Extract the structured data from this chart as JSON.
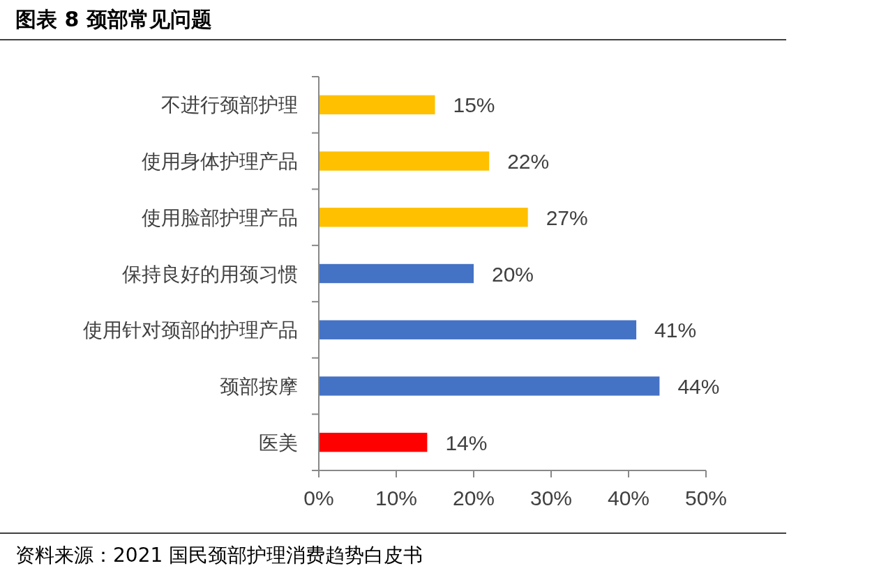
{
  "chart_data": {
    "type": "bar",
    "orientation": "horizontal",
    "title": "图表 8 颈部常见问题",
    "annotations": [
      "资料来源：2021 国民颈部护理消费趋势白皮书"
    ],
    "categories": [
      "不进行颈部护理",
      "使用身体护理产品",
      "使用脸部护理产品",
      "保持良好的用颈习惯",
      "使用针对颈部的护理产品",
      "颈部按摩",
      "医美"
    ],
    "values": [
      15,
      22,
      27,
      20,
      41,
      44,
      14
    ],
    "colors": [
      "#ffc000",
      "#ffc000",
      "#ffc000",
      "#4472c4",
      "#4472c4",
      "#4472c4",
      "#ff0000"
    ],
    "value_labels": [
      "15%",
      "22%",
      "27%",
      "20%",
      "41%",
      "44%",
      "14%"
    ],
    "xlim": [
      0,
      50
    ],
    "xticks": [
      {
        "value": 0,
        "label": "0%"
      },
      {
        "value": 10,
        "label": "10%"
      },
      {
        "value": 20,
        "label": "20%"
      },
      {
        "value": 30,
        "label": "30%"
      },
      {
        "value": 40,
        "label": "40%"
      },
      {
        "value": 50,
        "label": "50%"
      }
    ]
  }
}
